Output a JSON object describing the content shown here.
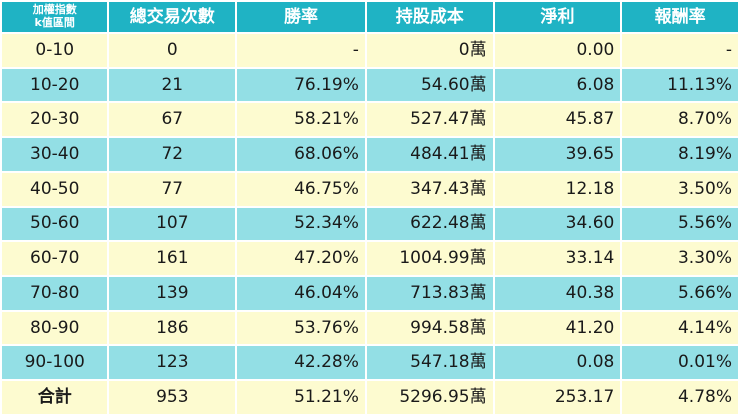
{
  "header": {
    "range_line1": "加權指數",
    "range_line2": "k值區間",
    "trades": "總交易次數",
    "win_rate": "勝率",
    "cost": "持股成本",
    "profit": "淨利",
    "return": "報酬率"
  },
  "rows": [
    {
      "range": "0-10",
      "trades": "0",
      "win": "-",
      "cost": "0萬",
      "profit": "0.00",
      "ret": "-"
    },
    {
      "range": "10-20",
      "trades": "21",
      "win": "76.19%",
      "cost": "54.60萬",
      "profit": "6.08",
      "ret": "11.13%"
    },
    {
      "range": "20-30",
      "trades": "67",
      "win": "58.21%",
      "cost": "527.47萬",
      "profit": "45.87",
      "ret": "8.70%"
    },
    {
      "range": "30-40",
      "trades": "72",
      "win": "68.06%",
      "cost": "484.41萬",
      "profit": "39.65",
      "ret": "8.19%"
    },
    {
      "range": "40-50",
      "trades": "77",
      "win": "46.75%",
      "cost": "347.43萬",
      "profit": "12.18",
      "ret": "3.50%"
    },
    {
      "range": "50-60",
      "trades": "107",
      "win": "52.34%",
      "cost": "622.48萬",
      "profit": "34.60",
      "ret": "5.56%"
    },
    {
      "range": "60-70",
      "trades": "161",
      "win": "47.20%",
      "cost": "1004.99萬",
      "profit": "33.14",
      "ret": "3.30%"
    },
    {
      "range": "70-80",
      "trades": "139",
      "win": "46.04%",
      "cost": "713.83萬",
      "profit": "40.38",
      "ret": "5.66%"
    },
    {
      "range": "80-90",
      "trades": "186",
      "win": "53.76%",
      "cost": "994.58萬",
      "profit": "41.20",
      "ret": "4.14%"
    },
    {
      "range": "90-100",
      "trades": "123",
      "win": "42.28%",
      "cost": "547.18萬",
      "profit": "0.08",
      "ret": "0.01%"
    }
  ],
  "total": {
    "label": "合計",
    "trades": "953",
    "win": "51.21%",
    "cost": "5296.95萬",
    "profit": "253.17",
    "ret": "4.78%"
  },
  "colors": {
    "header_bg": "#1fb3c4",
    "header_text": "#ffffff",
    "row_light": "#fdfbd0",
    "row_teal": "#93dfe5",
    "highlight_text": "#e58a8a"
  }
}
